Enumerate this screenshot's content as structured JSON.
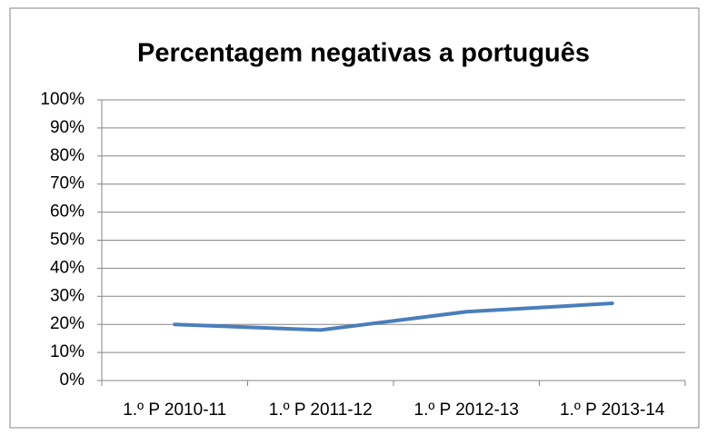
{
  "chart_data": {
    "type": "line",
    "title": "Percentagem negativas a português",
    "categories": [
      "1.º P 2010-11",
      "1.º P 2011-12",
      "1.º P 2012-13",
      "1.º P 2013-14"
    ],
    "series": [
      {
        "name": "Percentagem negativas a português",
        "color": "#4a7ebb",
        "values": [
          20,
          18,
          24.5,
          27.5
        ]
      }
    ],
    "ylim": [
      0,
      100
    ],
    "yticks": [
      {
        "value": 0,
        "label": "0%"
      },
      {
        "value": 10,
        "label": "10%"
      },
      {
        "value": 20,
        "label": "20%"
      },
      {
        "value": 30,
        "label": "30%"
      },
      {
        "value": 40,
        "label": "40%"
      },
      {
        "value": 50,
        "label": "50%"
      },
      {
        "value": 60,
        "label": "60%"
      },
      {
        "value": 70,
        "label": "70%"
      },
      {
        "value": 80,
        "label": "80%"
      },
      {
        "value": 90,
        "label": "90%"
      },
      {
        "value": 100,
        "label": "100%"
      }
    ],
    "grid": true,
    "legend": false
  }
}
